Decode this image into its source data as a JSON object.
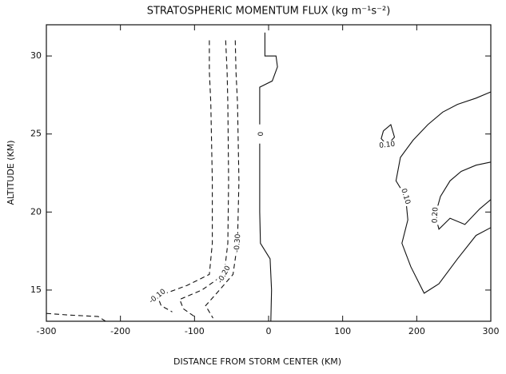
{
  "chart_data": {
    "type": "contour",
    "title": "STRATOSPHERIC MOMENTUM FLUX (kg m⁻¹s⁻²)",
    "xlabel": "DISTANCE FROM STORM CENTER (KM)",
    "ylabel": "ALTITUDE (KM)",
    "xlim": [
      -300,
      300
    ],
    "xticks": [
      -300,
      -200,
      -100,
      0,
      100,
      200,
      300
    ],
    "ylim": [
      13,
      32
    ],
    "yticks": [
      15,
      20,
      25,
      30
    ],
    "color": "#111111",
    "contours": [
      {
        "level": 0,
        "level_label": "0",
        "dashed": false,
        "x": [
          -5,
          -5,
          10,
          12,
          5,
          -12,
          -12,
          -12,
          -11,
          2,
          4,
          3
        ],
        "y": [
          31.5,
          30,
          30,
          29.3,
          28.4,
          28,
          25,
          20,
          18,
          17,
          15,
          13
        ]
      },
      {
        "level": -0.1,
        "level_label": "-0.10",
        "dashed": true,
        "x": [
          -80,
          -80,
          -78,
          -76,
          -76,
          -80,
          -110,
          -150,
          -145,
          -130,
          null,
          -300,
          -270,
          -230,
          -220
        ],
        "y": [
          31,
          29,
          27,
          22,
          18,
          16,
          15.3,
          14.6,
          14,
          13.6,
          null,
          13.5,
          13.4,
          13.3,
          13
        ]
      },
      {
        "level": -0.2,
        "level_label": "-0.20",
        "dashed": true,
        "x": [
          -58,
          -56,
          -55,
          -54,
          -55,
          -60,
          -90,
          -120,
          -115,
          -100
        ],
        "y": [
          31,
          29,
          27,
          22,
          18,
          16,
          15,
          14.4,
          13.8,
          13.3
        ]
      },
      {
        "level": -0.3,
        "level_label": "-0.30",
        "dashed": true,
        "x": [
          -45,
          -44,
          -42,
          -40,
          -42,
          -48,
          -70,
          -85,
          -75
        ],
        "y": [
          31,
          29,
          27,
          22,
          18,
          16,
          14.8,
          14,
          13.2
        ]
      },
      {
        "level": 0.1,
        "level_label": "0.10",
        "dashed": false,
        "x": [
          300,
          280,
          255,
          235,
          215,
          195,
          178,
          172,
          185,
          188,
          180,
          192,
          210,
          230,
          255,
          280,
          300
        ],
        "y": [
          27.7,
          27.3,
          26.9,
          26.4,
          25.6,
          24.6,
          23.5,
          22,
          21,
          19.5,
          18,
          16.5,
          14.8,
          15.4,
          17,
          18.5,
          19
        ]
      },
      {
        "level": 0.1,
        "level_label": "0.10",
        "dashed": false,
        "x": [
          155,
          165,
          170,
          160,
          152,
          155
        ],
        "y": [
          25.2,
          25.6,
          24.8,
          24.3,
          24.7,
          25.2
        ]
      },
      {
        "level": 0.2,
        "level_label": "0.20",
        "dashed": false,
        "x": [
          300,
          280,
          260,
          245,
          232,
          225,
          230,
          245,
          265,
          285,
          300
        ],
        "y": [
          23.2,
          23,
          22.6,
          22,
          21,
          19.8,
          18.9,
          19.6,
          19.2,
          20.2,
          20.8
        ]
      }
    ]
  }
}
